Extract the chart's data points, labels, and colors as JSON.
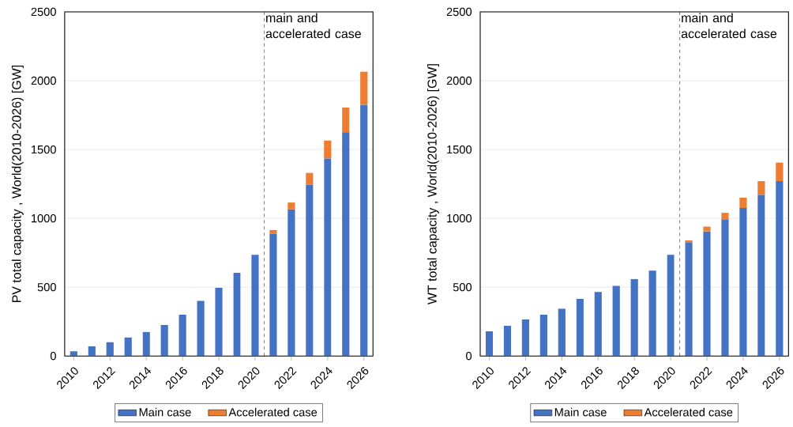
{
  "chart_data": [
    {
      "type": "bar",
      "stacked": true,
      "ylabel": "PV total capacity , World(2010-2026) [GW]",
      "x": [
        2010,
        2011,
        2012,
        2013,
        2014,
        2015,
        2016,
        2017,
        2018,
        2019,
        2020,
        2021,
        2022,
        2023,
        2024,
        2025,
        2026
      ],
      "series": [
        {
          "name": "Main case",
          "color": "#4472c4",
          "values": [
            35,
            70,
            100,
            135,
            175,
            225,
            300,
            400,
            495,
            605,
            735,
            890,
            1065,
            1245,
            1435,
            1625,
            1825
          ]
        },
        {
          "name": "Accelerated case",
          "color": "#ed7d31",
          "values": [
            null,
            null,
            null,
            null,
            null,
            null,
            null,
            null,
            null,
            null,
            null,
            25,
            50,
            85,
            130,
            180,
            240
          ]
        }
      ],
      "xlim": [
        2009.5,
        2026.5
      ],
      "xticks": [
        2010,
        2012,
        2014,
        2016,
        2018,
        2020,
        2022,
        2024,
        2026
      ],
      "ylim": [
        0,
        2500
      ],
      "yticks": [
        0,
        500,
        1000,
        1500,
        2000,
        2500
      ],
      "grid": "y",
      "legend": "bottom",
      "ref_lines": [
        {
          "axis": "x",
          "value": 2020.5,
          "label": "main and accelerated case",
          "line_style": "dashed"
        }
      ]
    },
    {
      "type": "bar",
      "stacked": true,
      "ylabel": "WT total capacity , World(2010-2026) [GW]",
      "x": [
        2010,
        2011,
        2012,
        2013,
        2014,
        2015,
        2016,
        2017,
        2018,
        2019,
        2020,
        2021,
        2022,
        2023,
        2024,
        2025,
        2026
      ],
      "series": [
        {
          "name": "Main case",
          "color": "#4472c4",
          "values": [
            180,
            220,
            265,
            300,
            345,
            415,
            465,
            510,
            560,
            620,
            735,
            825,
            905,
            990,
            1075,
            1170,
            1270
          ]
        },
        {
          "name": "Accelerated case",
          "color": "#ed7d31",
          "values": [
            null,
            null,
            null,
            null,
            null,
            null,
            null,
            null,
            null,
            null,
            null,
            15,
            35,
            50,
            75,
            100,
            135
          ]
        }
      ],
      "xlim": [
        2009.5,
        2026.5
      ],
      "xticks": [
        2010,
        2012,
        2014,
        2016,
        2018,
        2020,
        2022,
        2024,
        2026
      ],
      "ylim": [
        0,
        2500
      ],
      "yticks": [
        0,
        500,
        1000,
        1500,
        2000,
        2500
      ],
      "grid": "y",
      "legend": "bottom",
      "ref_lines": [
        {
          "axis": "x",
          "value": 2020.5,
          "label": "main and accelerated case",
          "line_style": "dashed"
        }
      ]
    }
  ]
}
